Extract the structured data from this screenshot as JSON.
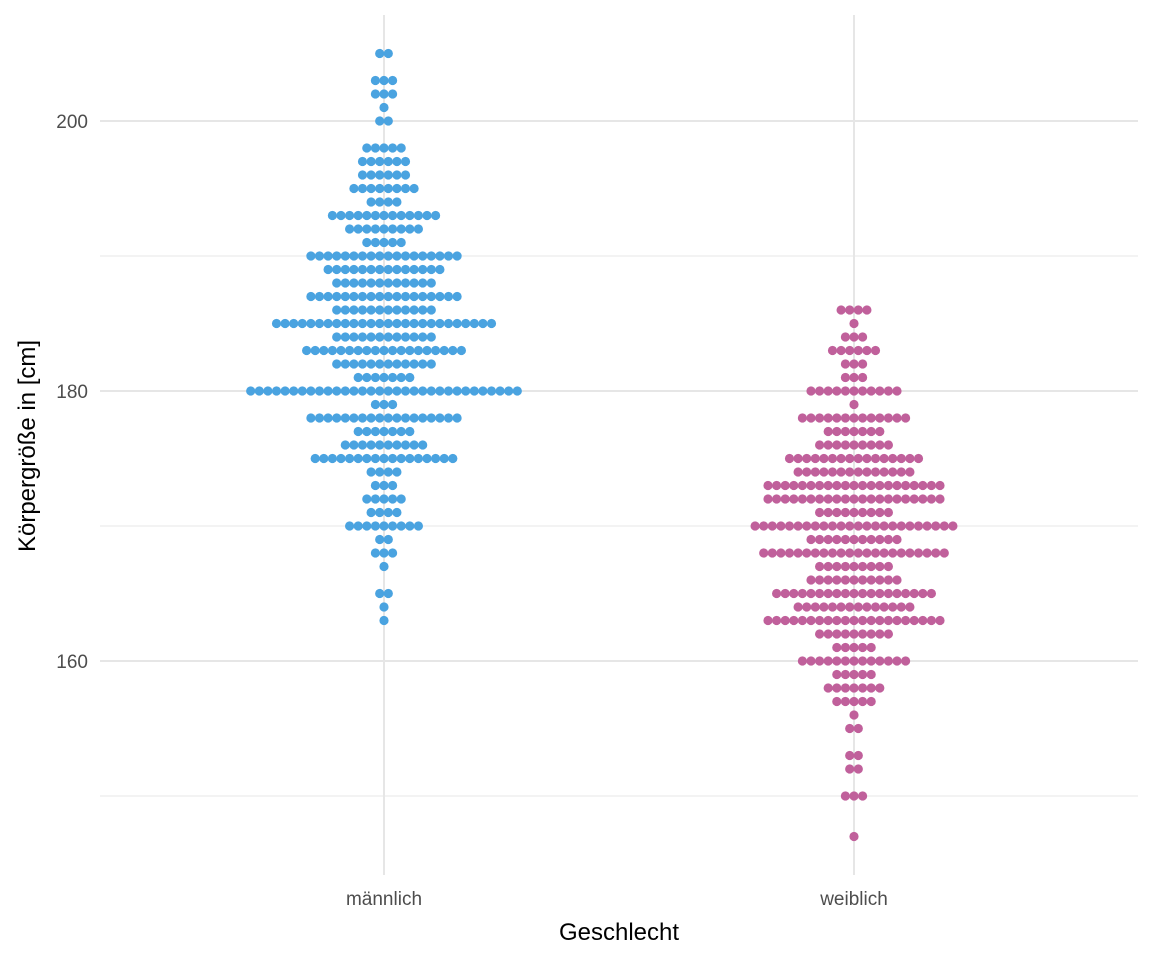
{
  "chart_data": {
    "type": "dotplot",
    "xlabel": "Geschlecht",
    "ylabel": "Körpergröße in [cm]",
    "categories": [
      "männlich",
      "weiblich"
    ],
    "ylim": [
      146,
      208
    ],
    "yticks": [
      160,
      180,
      200
    ],
    "yminor": [
      150,
      170,
      190
    ],
    "grid": true,
    "legend": "none",
    "series": [
      {
        "category": "männlich",
        "color": "#4aa3e0",
        "bins": [
          {
            "y": 205,
            "n": 2
          },
          {
            "y": 203,
            "n": 3
          },
          {
            "y": 202,
            "n": 3
          },
          {
            "y": 201,
            "n": 1
          },
          {
            "y": 200,
            "n": 2
          },
          {
            "y": 198,
            "n": 5
          },
          {
            "y": 197,
            "n": 6
          },
          {
            "y": 196,
            "n": 6
          },
          {
            "y": 195,
            "n": 8
          },
          {
            "y": 194,
            "n": 4
          },
          {
            "y": 193,
            "n": 13
          },
          {
            "y": 192,
            "n": 9
          },
          {
            "y": 191,
            "n": 5
          },
          {
            "y": 190,
            "n": 18
          },
          {
            "y": 189,
            "n": 14
          },
          {
            "y": 188,
            "n": 12
          },
          {
            "y": 187,
            "n": 18
          },
          {
            "y": 186,
            "n": 12
          },
          {
            "y": 185,
            "n": 26
          },
          {
            "y": 184,
            "n": 12
          },
          {
            "y": 183,
            "n": 19
          },
          {
            "y": 182,
            "n": 12
          },
          {
            "y": 181,
            "n": 7
          },
          {
            "y": 180,
            "n": 32
          },
          {
            "y": 179,
            "n": 3
          },
          {
            "y": 178,
            "n": 18
          },
          {
            "y": 177,
            "n": 7
          },
          {
            "y": 176,
            "n": 10
          },
          {
            "y": 175,
            "n": 17
          },
          {
            "y": 174,
            "n": 4
          },
          {
            "y": 173,
            "n": 3
          },
          {
            "y": 172,
            "n": 5
          },
          {
            "y": 171,
            "n": 4
          },
          {
            "y": 170,
            "n": 9
          },
          {
            "y": 169,
            "n": 2
          },
          {
            "y": 168,
            "n": 3
          },
          {
            "y": 167,
            "n": 1
          },
          {
            "y": 165,
            "n": 2
          },
          {
            "y": 164,
            "n": 1
          },
          {
            "y": 163,
            "n": 1
          }
        ]
      },
      {
        "category": "weiblich",
        "color": "#c0609b",
        "bins": [
          {
            "y": 186,
            "n": 4
          },
          {
            "y": 185,
            "n": 1
          },
          {
            "y": 184,
            "n": 3
          },
          {
            "y": 183,
            "n": 6
          },
          {
            "y": 182,
            "n": 3
          },
          {
            "y": 181,
            "n": 3
          },
          {
            "y": 180,
            "n": 11
          },
          {
            "y": 179,
            "n": 1
          },
          {
            "y": 178,
            "n": 13
          },
          {
            "y": 177,
            "n": 7
          },
          {
            "y": 176,
            "n": 9
          },
          {
            "y": 175,
            "n": 16
          },
          {
            "y": 174,
            "n": 14
          },
          {
            "y": 173,
            "n": 21
          },
          {
            "y": 172,
            "n": 21
          },
          {
            "y": 171,
            "n": 9
          },
          {
            "y": 170,
            "n": 24
          },
          {
            "y": 169,
            "n": 11
          },
          {
            "y": 168,
            "n": 22
          },
          {
            "y": 167,
            "n": 9
          },
          {
            "y": 166,
            "n": 11
          },
          {
            "y": 165,
            "n": 19
          },
          {
            "y": 164,
            "n": 14
          },
          {
            "y": 163,
            "n": 21
          },
          {
            "y": 162,
            "n": 9
          },
          {
            "y": 161,
            "n": 5
          },
          {
            "y": 160,
            "n": 13
          },
          {
            "y": 159,
            "n": 5
          },
          {
            "y": 158,
            "n": 7
          },
          {
            "y": 157,
            "n": 5
          },
          {
            "y": 156,
            "n": 1
          },
          {
            "y": 155,
            "n": 2
          },
          {
            "y": 153,
            "n": 2
          },
          {
            "y": 152,
            "n": 2
          },
          {
            "y": 150,
            "n": 3
          },
          {
            "y": 147,
            "n": 1
          }
        ]
      }
    ]
  }
}
